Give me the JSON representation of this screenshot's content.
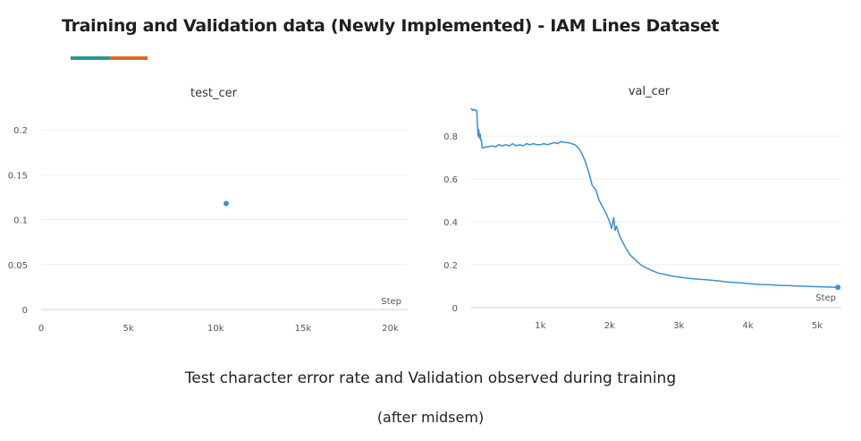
{
  "page": {
    "title": "Training and Validation data (Newly Implemented) - IAM Lines Dataset",
    "caption_line1": "Test character error rate and Validation observed during training",
    "caption_line2": "(after midsem)",
    "underline_colors": [
      "#26998b",
      "#e0652a"
    ]
  },
  "chart_data": [
    {
      "type": "scatter",
      "title": "test_cer",
      "xlabel": "Step",
      "ylabel": "",
      "xlim": [
        0,
        21000
      ],
      "ylim": [
        0,
        0.22
      ],
      "x_ticks": [
        0,
        5000,
        10000,
        15000,
        20000
      ],
      "x_tick_labels": [
        "0",
        "5k",
        "10k",
        "15k",
        "20k"
      ],
      "y_ticks": [
        0,
        0.05,
        0.1,
        0.15,
        0.2
      ],
      "y_tick_labels": [
        "0",
        "0.05",
        "0.1",
        "0.15",
        "0.2"
      ],
      "grid": true,
      "color": "#3f8fd2",
      "series": [
        {
          "x": [
            10600
          ],
          "y": [
            0.118
          ]
        }
      ]
    },
    {
      "type": "line",
      "title": "val_cer",
      "xlabel": "Step",
      "ylabel": "",
      "xlim": [
        0,
        5350
      ],
      "ylim": [
        0,
        0.93
      ],
      "x_ticks": [
        1000,
        2000,
        3000,
        4000,
        5000
      ],
      "x_tick_labels": [
        "1k",
        "2k",
        "3k",
        "4k",
        "5k"
      ],
      "y_ticks": [
        0,
        0.2,
        0.4,
        0.6,
        0.8
      ],
      "y_tick_labels": [
        "0",
        "0.2",
        "0.4",
        "0.6",
        "0.8"
      ],
      "grid": true,
      "color": "#3f8fd2",
      "series": [
        {
          "x": [
            0,
            20,
            40,
            60,
            80,
            90,
            100,
            110,
            120,
            130,
            140,
            150,
            160,
            180,
            200,
            250,
            300,
            350,
            400,
            450,
            500,
            550,
            600,
            650,
            700,
            750,
            800,
            850,
            900,
            950,
            1000,
            1050,
            1100,
            1150,
            1200,
            1250,
            1300,
            1350,
            1400,
            1450,
            1500,
            1550,
            1600,
            1650,
            1700,
            1750,
            1800,
            1850,
            1900,
            1950,
            2000,
            2030,
            2060,
            2080,
            2100,
            2150,
            2200,
            2250,
            2300,
            2350,
            2400,
            2450,
            2500,
            2600,
            2700,
            2800,
            2900,
            3000,
            3100,
            3200,
            3300,
            3400,
            3500,
            3600,
            3700,
            3800,
            3900,
            4000,
            4100,
            4200,
            4300,
            4400,
            4500,
            4600,
            4700,
            4800,
            4900,
            5000,
            5100,
            5200,
            5300
          ],
          "y": [
            0.93,
            0.92,
            0.925,
            0.92,
            0.92,
            0.85,
            0.8,
            0.83,
            0.79,
            0.81,
            0.78,
            0.78,
            0.745,
            0.745,
            0.75,
            0.75,
            0.755,
            0.75,
            0.76,
            0.755,
            0.76,
            0.755,
            0.765,
            0.755,
            0.76,
            0.755,
            0.765,
            0.76,
            0.765,
            0.76,
            0.76,
            0.765,
            0.76,
            0.765,
            0.77,
            0.765,
            0.775,
            0.77,
            0.77,
            0.765,
            0.76,
            0.745,
            0.72,
            0.68,
            0.63,
            0.57,
            0.55,
            0.5,
            0.47,
            0.44,
            0.4,
            0.37,
            0.42,
            0.36,
            0.38,
            0.33,
            0.3,
            0.27,
            0.245,
            0.23,
            0.215,
            0.2,
            0.19,
            0.175,
            0.162,
            0.155,
            0.148,
            0.143,
            0.138,
            0.135,
            0.132,
            0.13,
            0.127,
            0.124,
            0.12,
            0.118,
            0.116,
            0.113,
            0.11,
            0.108,
            0.107,
            0.105,
            0.104,
            0.103,
            0.101,
            0.1,
            0.099,
            0.098,
            0.097,
            0.096,
            0.095
          ]
        }
      ]
    }
  ]
}
